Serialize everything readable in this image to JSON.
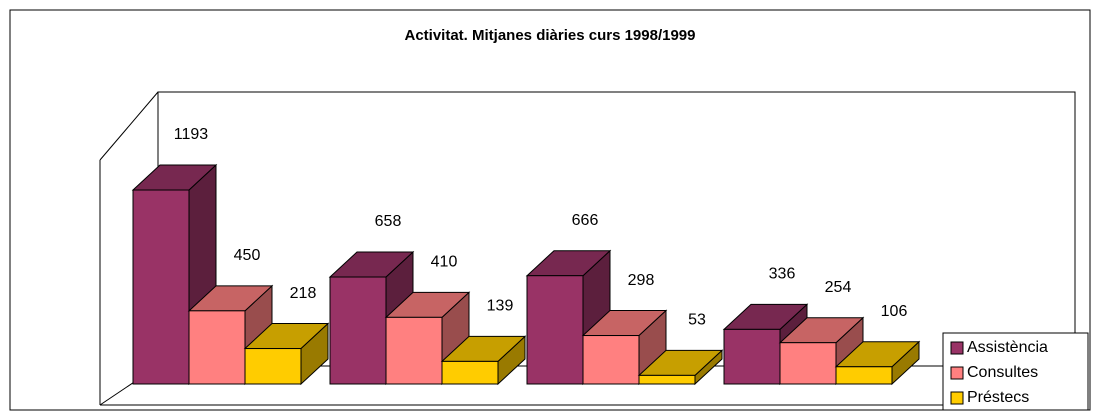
{
  "chart_data": {
    "type": "bar3d",
    "title": "Activitat. Mitjanes diàries curs 1998/1999",
    "categories": [
      null,
      null,
      null,
      null
    ],
    "series": [
      {
        "name": "Assistència",
        "color": "#993366",
        "values": [
          1193,
          658,
          666,
          336
        ]
      },
      {
        "name": "Consultes",
        "color": "#ff8080",
        "values": [
          450,
          410,
          298,
          254
        ]
      },
      {
        "name": "Préstecs",
        "color": "#ffcc00",
        "values": [
          218,
          139,
          53,
          106
        ]
      }
    ],
    "legend": "bottom-right"
  }
}
